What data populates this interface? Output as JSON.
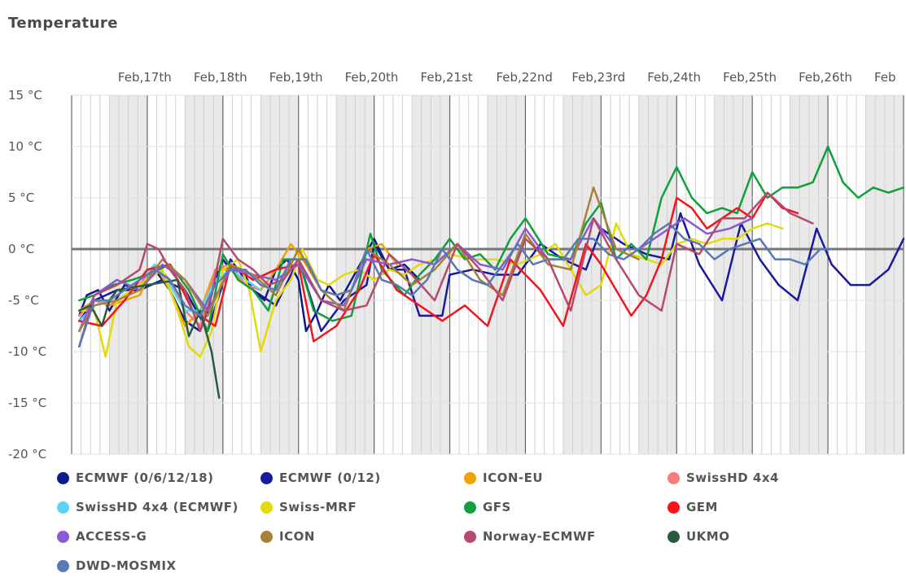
{
  "title": "Temperature",
  "chart_data": {
    "type": "line",
    "title": "Temperature",
    "ylim": [
      -20,
      15
    ],
    "y_ticks": [
      "15 °C",
      "10 °C",
      "5 °C",
      "0 °C",
      "-5 °C",
      "-10 °C",
      "-15 °C",
      "-20 °C"
    ],
    "y_tick_values": [
      15,
      10,
      5,
      0,
      -5,
      -10,
      -15,
      -20
    ],
    "x_range_days": [
      16.0,
      27.0
    ],
    "x_ticks": [
      "Feb,17th",
      "Feb,18th",
      "Feb,19th",
      "Feb,20th",
      "Feb,21st",
      "Feb,22nd",
      "Feb,23rd",
      "Feb,24th",
      "Feb,25th",
      "Feb,26th",
      "Feb"
    ],
    "x_tick_days": [
      17,
      18,
      19,
      20,
      21,
      22,
      23,
      24,
      25,
      26,
      27
    ],
    "legend_placement": "bottom",
    "grid": true,
    "series": [
      {
        "name": "ECMWF (0/6/12/18)",
        "color": "#0b1a8c",
        "x": [
          16.1,
          16.2,
          16.35,
          16.5,
          16.7,
          16.9,
          17.0,
          17.1,
          17.3,
          17.5,
          17.7,
          17.8,
          17.9,
          18.0,
          18.1,
          18.25,
          18.4,
          18.55,
          18.7,
          18.85,
          19.0,
          19.1,
          19.25,
          19.4,
          19.55,
          19.7,
          19.85,
          20.0,
          20.2,
          20.4,
          20.6
        ],
        "y": [
          -6.5,
          -4.5,
          -4,
          -6,
          -3.5,
          -4,
          -3,
          -2,
          -4,
          -7,
          -8,
          -6,
          -3,
          -1,
          -2,
          -2,
          -4,
          -5,
          -2,
          -1,
          -3,
          -8,
          -6,
          -3.5,
          -5,
          -3,
          -1,
          1,
          -2,
          -1.5,
          -3
        ]
      },
      {
        "name": "ECMWF (0/12)",
        "color": "#1a1a9c",
        "x": [
          16.1,
          16.3,
          16.6,
          16.9,
          17.2,
          17.5,
          17.8,
          18.1,
          18.4,
          18.7,
          19.0,
          19.3,
          19.6,
          19.9,
          20.0,
          20.2,
          20.4,
          20.6,
          20.9,
          21.0,
          21.3,
          21.6,
          21.9,
          22.2,
          22.5,
          22.8,
          23.0,
          23.3,
          23.6,
          23.9,
          24.05,
          24.3,
          24.6,
          24.85,
          25.1,
          25.35,
          25.6,
          25.85,
          26.05,
          26.3,
          26.55,
          26.8,
          27.0
        ],
        "y": [
          -7,
          -5,
          -4,
          -4,
          -3,
          -4,
          -8,
          -1,
          -4,
          -5.5,
          -1,
          -8,
          -5,
          -3.5,
          0.5,
          -2,
          -2,
          -6.5,
          -6.5,
          -2.5,
          -2,
          -2.5,
          -2.5,
          0.5,
          -1,
          -2,
          2,
          0.5,
          -0.5,
          -1,
          3.5,
          -1.5,
          -5,
          2.5,
          -1,
          -3.5,
          -5,
          2,
          -1.5,
          -3.5,
          -3.5,
          -2,
          1
        ]
      },
      {
        "name": "ICON-EU",
        "color": "#f2a007",
        "x": [
          16.1,
          16.3,
          16.5,
          16.7,
          16.9,
          17.1,
          17.3,
          17.5,
          17.7,
          17.9,
          18.1,
          18.3,
          18.5,
          18.7,
          18.9,
          19.1,
          19.3,
          19.5,
          19.7,
          19.9,
          20.1,
          20.3
        ],
        "y": [
          -6,
          -5,
          -5.5,
          -5,
          -4.5,
          -1.5,
          -4,
          -7.5,
          -6,
          -2,
          -2,
          -3.5,
          -4,
          -2,
          0.5,
          -1.5,
          -4,
          -4.5,
          -4,
          0,
          0.5,
          -1.5
        ]
      },
      {
        "name": "SwissHD 4x4",
        "color": "#f77b7b",
        "x": [
          16.1,
          16.3,
          16.5,
          16.7,
          16.9,
          17.1,
          17.3,
          17.5,
          17.7,
          17.9,
          18.1,
          18.3,
          18.5
        ],
        "y": [
          -6.5,
          -5,
          -5.5,
          -4.5,
          -3.5,
          -1.5,
          -3,
          -6,
          -7.5,
          -2,
          -1.5,
          -3.5,
          -4
        ]
      },
      {
        "name": "SwissHD 4x4 (ECMWF)",
        "color": "#5ad4f5",
        "x": [
          16.1,
          16.3,
          16.5,
          16.7,
          16.9,
          17.1,
          17.3,
          17.5,
          17.7,
          17.9,
          18.1,
          18.3,
          18.5
        ],
        "y": [
          -7,
          -5.5,
          -5,
          -4,
          -3,
          -1.5,
          -3.5,
          -6,
          -6,
          -3,
          -2,
          -3,
          -4
        ]
      },
      {
        "name": "Swiss-MRF",
        "color": "#e4d90a",
        "x": [
          16.1,
          16.3,
          16.45,
          16.6,
          16.8,
          17.0,
          17.2,
          17.4,
          17.55,
          17.7,
          17.85,
          18.0,
          18.2,
          18.35,
          18.5,
          18.7,
          18.9,
          19.05,
          19.25,
          19.4,
          19.6,
          19.8,
          20.0,
          20.2,
          20.4,
          20.6,
          20.8,
          21.0,
          21.3,
          21.6,
          21.9,
          22.2,
          22.4,
          22.6,
          22.8,
          23.0,
          23.2,
          23.4,
          23.6,
          23.8,
          24.0,
          24.2,
          24.4,
          24.6,
          24.8,
          25.0,
          25.2,
          25.4
        ],
        "y": [
          -6,
          -6,
          -10.5,
          -5,
          -4,
          -3,
          -2,
          -6,
          -9.5,
          -10.5,
          -8,
          -2,
          -1,
          -4,
          -10,
          -5,
          -3,
          0,
          -3,
          -3.5,
          -2.5,
          -2,
          -3,
          -2,
          -2.5,
          -1.5,
          -1,
          -0.5,
          -1,
          -1,
          -1.5,
          -0.5,
          0.5,
          -2,
          -4.5,
          -3.5,
          2.5,
          -0.5,
          -1,
          -1.5,
          0.5,
          1,
          0.5,
          1,
          1,
          2,
          2.5,
          2
        ]
      },
      {
        "name": "GFS",
        "color": "#0fa03c",
        "x": [
          16.1,
          16.3,
          16.55,
          16.8,
          17.0,
          17.3,
          17.55,
          17.8,
          18.0,
          18.2,
          18.4,
          18.6,
          18.8,
          19.0,
          19.2,
          19.45,
          19.7,
          19.95,
          20.1,
          20.4,
          20.6,
          20.8,
          21.0,
          21.2,
          21.4,
          21.6,
          21.8,
          22.0,
          22.3,
          22.6,
          22.8,
          23.0,
          23.2,
          23.4,
          23.6,
          23.8,
          24.0,
          24.2,
          24.4,
          24.6,
          24.8,
          25.0,
          25.2,
          25.4,
          25.6,
          25.8,
          26.0,
          26.2,
          26.4,
          26.6,
          26.8,
          27.0
        ],
        "y": [
          -5,
          -4.5,
          -3.5,
          -3,
          -2.5,
          -1.5,
          -4,
          -8,
          -0.5,
          -3,
          -4,
          -6,
          -1,
          -1,
          -6,
          -7,
          -6.5,
          1.5,
          -2,
          -4.5,
          -2.5,
          -1,
          1,
          -1,
          -0.5,
          -2,
          1,
          3,
          -0.5,
          -1,
          2.5,
          4.5,
          -1,
          0.5,
          -1,
          5,
          8,
          5,
          3.5,
          4,
          3.5,
          7.5,
          5,
          6,
          6,
          6.5,
          10,
          6.5,
          5,
          6,
          5.5,
          6
        ]
      },
      {
        "name": "GEM",
        "color": "#f5141e",
        "x": [
          16.1,
          16.4,
          16.7,
          17.0,
          17.3,
          17.6,
          17.9,
          18.1,
          18.4,
          18.7,
          19.0,
          19.2,
          19.5,
          19.8,
          20.0,
          20.3,
          20.6,
          20.9,
          21.2,
          21.5,
          21.8,
          22.0,
          22.2,
          22.5,
          22.8,
          23.0,
          23.2,
          23.4,
          23.6,
          23.8,
          24.0,
          24.2,
          24.4,
          24.6,
          24.8,
          25.0,
          25.2,
          25.4,
          25.6
        ],
        "y": [
          -7,
          -7.5,
          -5,
          -2,
          -1.5,
          -6,
          -7.5,
          -1.5,
          -3,
          -2,
          -1.5,
          -9,
          -7.5,
          -4,
          -0.5,
          -4,
          -5.5,
          -7,
          -5.5,
          -7.5,
          -1,
          -2.5,
          -4,
          -7.5,
          0.5,
          -1.5,
          -4,
          -6.5,
          -4.5,
          -1,
          5,
          4,
          2,
          3,
          4,
          3,
          5.5,
          4,
          3.5
        ]
      },
      {
        "name": "ACCESS-G",
        "color": "#8a5ad6",
        "x": [
          16.1,
          16.3,
          16.6,
          16.9,
          17.2,
          17.5,
          17.8,
          18.1,
          18.4,
          18.7,
          19.0,
          19.3,
          19.6,
          19.9,
          20.2,
          20.5,
          20.8,
          21.1,
          21.4,
          21.7,
          22.0,
          22.3,
          22.6,
          22.9,
          23.2,
          23.5,
          23.8,
          24.1,
          24.4,
          24.7,
          25.0
        ],
        "y": [
          -8,
          -4.5,
          -3,
          -4,
          -1.5,
          -3,
          -6,
          -2,
          -2.5,
          -3,
          -1.5,
          -5,
          -5.5,
          -1,
          -1.5,
          -1,
          -1.5,
          0.5,
          -1.5,
          -2,
          2,
          -1,
          -1,
          3,
          0,
          0,
          1.5,
          3,
          1.5,
          2,
          3
        ]
      },
      {
        "name": "ICON",
        "color": "#a7813a",
        "x": [
          16.1,
          16.3,
          16.6,
          16.9,
          17.2,
          17.5,
          17.8,
          18.1,
          18.4,
          18.7,
          19.0,
          19.3,
          19.6,
          19.9,
          20.2,
          20.5,
          20.8,
          21.1,
          21.4,
          21.7,
          22.0,
          22.3,
          22.6,
          22.9,
          23.2,
          23.5
        ],
        "y": [
          -8,
          -5.5,
          -5,
          -4,
          -1,
          -3,
          -6.5,
          -1.5,
          -2.5,
          -4.5,
          0,
          -4,
          -6,
          0,
          -1.5,
          -3.5,
          -2,
          0.5,
          -3,
          -4.5,
          1.5,
          -1.5,
          -2,
          6,
          0,
          -1
        ]
      },
      {
        "name": "Norway-ECMWF",
        "color": "#b54a6e",
        "x": [
          16.1,
          16.3,
          16.6,
          16.9,
          17.0,
          17.15,
          17.3,
          17.5,
          17.7,
          17.85,
          18.0,
          18.2,
          18.4,
          18.6,
          18.8,
          19.0,
          19.3,
          19.6,
          19.9,
          20.2,
          20.5,
          20.8,
          21.1,
          21.4,
          21.7,
          22.0,
          22.3,
          22.6,
          22.9,
          23.2,
          23.5,
          23.8,
          24.0,
          24.3,
          24.6,
          24.9,
          25.2,
          25.5,
          25.8
        ],
        "y": [
          -9.5,
          -4.5,
          -3.5,
          -2,
          0.5,
          0,
          -2,
          -4,
          -8,
          -4.5,
          1,
          -1,
          -2,
          -3.5,
          -3,
          -1,
          -5,
          -6,
          -5.5,
          -0.5,
          -2.5,
          -5,
          0.5,
          -2,
          -5,
          1,
          -1,
          -6,
          3,
          -1,
          -4.5,
          -6,
          0.5,
          -0.5,
          3,
          3,
          5.5,
          3.5,
          2.5
        ]
      },
      {
        "name": "UKMO",
        "color": "#2a5a3e",
        "x": [
          16.1,
          16.25,
          16.4,
          16.5,
          16.6,
          17.4,
          17.55,
          17.7,
          17.85,
          17.95
        ],
        "y": [
          -6,
          -5.5,
          -7.5,
          -5,
          -4,
          -3,
          -8.5,
          -6,
          -10,
          -14.5
        ]
      },
      {
        "name": "DWD-MOSMIX",
        "color": "#5a78b4",
        "x": [
          16.1,
          16.3,
          16.5,
          16.7,
          16.9,
          17.1,
          17.3,
          17.5,
          17.7,
          17.9,
          18.1,
          18.3,
          18.5,
          18.7,
          18.9,
          19.1,
          19.3,
          19.5,
          19.7,
          19.9,
          20.1,
          20.3,
          20.5,
          20.7,
          20.9,
          21.1,
          21.3,
          21.5,
          21.7,
          21.9,
          22.1,
          22.3,
          22.5,
          22.7,
          22.9,
          23.1,
          23.3,
          23.5,
          23.7,
          23.9,
          24.1,
          24.3,
          24.5,
          24.7,
          24.9,
          25.1,
          25.3,
          25.5,
          25.7,
          25.9,
          26.05
        ],
        "y": [
          -9.5,
          -5,
          -5,
          -4,
          -3,
          -2,
          -3,
          -5.5,
          -6.5,
          -3.5,
          -2,
          -2,
          -3.5,
          -4,
          -1,
          -1,
          -4,
          -4.5,
          -4,
          0,
          -3,
          -3.5,
          -4.5,
          -3,
          0,
          -2,
          -3,
          -3.5,
          -1.5,
          0.5,
          -1.5,
          -1,
          -1,
          1,
          1,
          -0.5,
          -1,
          0,
          1.5,
          2.5,
          1,
          0.5,
          -1,
          0,
          0.5,
          1,
          -1,
          -1,
          -1.5,
          0,
          0
        ]
      }
    ]
  }
}
